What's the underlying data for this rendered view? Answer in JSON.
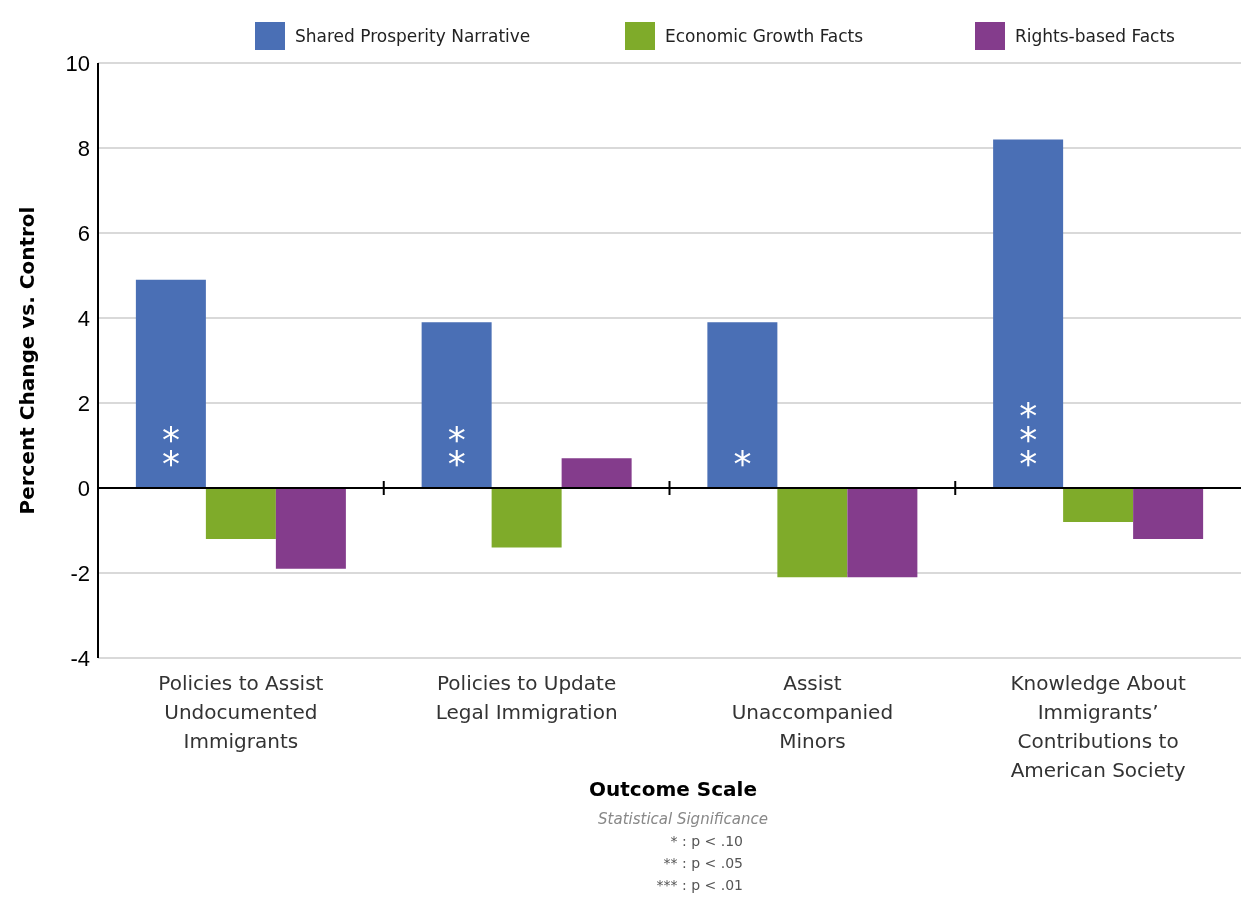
{
  "chart_data": {
    "type": "bar",
    "categories": [
      "Policies to Assist Undocumented Immigrants",
      "Policies to Update Legal Immigration",
      "Assist Unaccompanied Minors",
      "Knowledge About Immigrants’ Contributions to American Society"
    ],
    "series": [
      {
        "name": "Shared Prosperity Narrative",
        "color": "#4a6fb5",
        "values": [
          4.9,
          3.9,
          3.9,
          8.2
        ]
      },
      {
        "name": "Economic Growth Facts",
        "color": "#7fab2a",
        "values": [
          -1.2,
          -1.4,
          -2.1,
          -0.8
        ]
      },
      {
        "name": "Rights-based Facts",
        "color": "#843c8c",
        "values": [
          -1.9,
          0.7,
          -2.1,
          -1.2
        ]
      }
    ],
    "ylabel": "Percent Change vs. Control",
    "xlabel": "Outcome Scale",
    "ylim": [
      -4,
      10
    ],
    "yticks": [
      -4,
      -2,
      0,
      2,
      4,
      6,
      8,
      10
    ],
    "grid": "y",
    "legend": "top",
    "annotations": [
      "**",
      "**",
      "*",
      "***",
      "Statistical Significance",
      "* : p < .10",
      "** : p < .05",
      "*** : p < .01"
    ]
  }
}
